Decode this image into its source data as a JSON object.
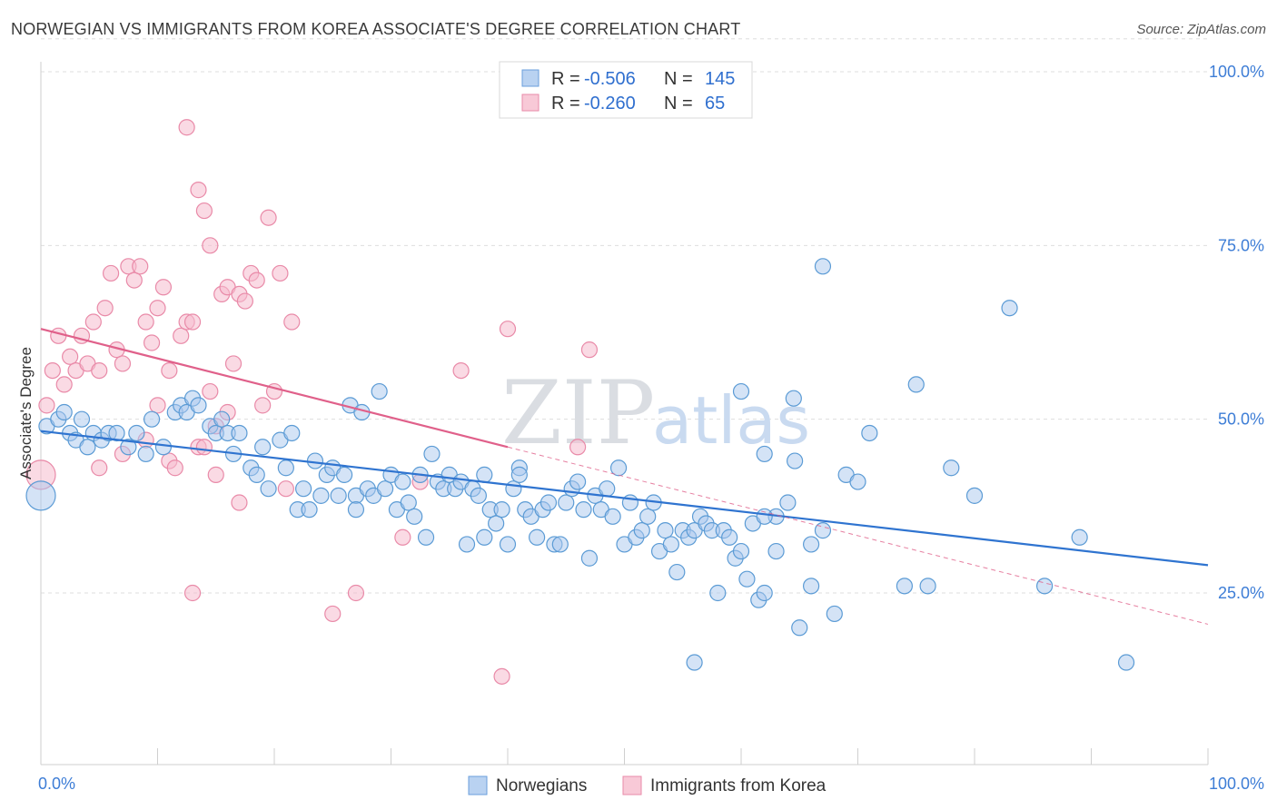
{
  "title": "NORWEGIAN VS IMMIGRANTS FROM KOREA ASSOCIATE'S DEGREE CORRELATION CHART",
  "source": "Source: ZipAtlas.com",
  "watermark": {
    "zip": "ZIP",
    "atlas": "atlas"
  },
  "colors": {
    "blue": "#5b9bd5",
    "blue_fill": "#a9c8ee",
    "blue_line": "#2f74d0",
    "pink": "#e98aa8",
    "pink_fill": "#f5bccd",
    "pink_line": "#e0608a"
  },
  "legend": {
    "rows": [
      {
        "r_label": "R = ",
        "r_value": "-0.506",
        "n_label": "N = ",
        "n_value": "145"
      },
      {
        "r_label": "R = ",
        "r_value": "-0.260",
        "n_label": "N = ",
        "n_value": "65"
      }
    ]
  },
  "bottom_legend": [
    "Norwegians",
    "Immigrants from Korea"
  ],
  "chart_data": {
    "type": "scatter",
    "ylabel": "Associate's Degree",
    "xlim": [
      0,
      100
    ],
    "ylim": [
      0,
      105
    ],
    "x_tick_labels": [
      "0.0%",
      "100.0%"
    ],
    "y_ticks": [
      25,
      50,
      75,
      100
    ],
    "y_tick_labels": [
      "25.0%",
      "50.0%",
      "75.0%",
      "100.0%"
    ],
    "series": [
      {
        "name": "Norwegians",
        "trend": {
          "x": [
            0,
            100
          ],
          "y": [
            48.3,
            29.0
          ]
        },
        "points": [
          [
            0.5,
            49
          ],
          [
            1.5,
            50
          ],
          [
            2,
            51
          ],
          [
            2.5,
            48
          ],
          [
            3,
            47
          ],
          [
            3.5,
            50
          ],
          [
            4,
            46
          ],
          [
            4.5,
            48
          ],
          [
            5.2,
            47
          ],
          [
            5.8,
            48
          ],
          [
            6.5,
            48
          ],
          [
            7.5,
            46
          ],
          [
            8.2,
            48
          ],
          [
            9,
            45
          ],
          [
            9.5,
            50
          ],
          [
            10.5,
            46
          ],
          [
            11.5,
            51
          ],
          [
            12,
            52
          ],
          [
            12.5,
            51
          ],
          [
            13,
            53
          ],
          [
            13.5,
            52
          ],
          [
            14.5,
            49
          ],
          [
            15,
            48
          ],
          [
            15.5,
            50
          ],
          [
            16,
            48
          ],
          [
            16.5,
            45
          ],
          [
            17,
            48
          ],
          [
            18,
            43
          ],
          [
            18.5,
            42
          ],
          [
            19,
            46
          ],
          [
            19.5,
            40
          ],
          [
            20.5,
            47
          ],
          [
            21,
            43
          ],
          [
            21.5,
            48
          ],
          [
            22,
            37
          ],
          [
            22.5,
            40
          ],
          [
            23,
            37
          ],
          [
            23.5,
            44
          ],
          [
            24,
            39
          ],
          [
            24.5,
            42
          ],
          [
            25,
            43
          ],
          [
            25.5,
            39
          ],
          [
            26,
            42
          ],
          [
            26.5,
            52
          ],
          [
            27,
            39
          ],
          [
            27.5,
            51
          ],
          [
            28,
            40
          ],
          [
            28.5,
            39
          ],
          [
            29,
            54
          ],
          [
            29.5,
            40
          ],
          [
            30,
            42
          ],
          [
            30.5,
            37
          ],
          [
            31,
            41
          ],
          [
            31.5,
            38
          ],
          [
            32,
            36
          ],
          [
            32.5,
            42
          ],
          [
            33,
            33
          ],
          [
            33.5,
            45
          ],
          [
            34,
            41
          ],
          [
            34.5,
            40
          ],
          [
            35,
            42
          ],
          [
            35.5,
            40
          ],
          [
            36,
            41
          ],
          [
            36.5,
            32
          ],
          [
            37,
            40
          ],
          [
            37.5,
            39
          ],
          [
            38,
            42
          ],
          [
            38.5,
            37
          ],
          [
            39,
            35
          ],
          [
            39.5,
            37
          ],
          [
            40,
            32
          ],
          [
            40.5,
            40
          ],
          [
            41,
            43
          ],
          [
            41.5,
            37
          ],
          [
            42,
            36
          ],
          [
            42.5,
            33
          ],
          [
            43,
            37
          ],
          [
            43.5,
            38
          ],
          [
            44,
            32
          ],
          [
            44.5,
            32
          ],
          [
            45,
            38
          ],
          [
            45.5,
            40
          ],
          [
            46,
            41
          ],
          [
            46.5,
            37
          ],
          [
            47,
            30
          ],
          [
            47.5,
            39
          ],
          [
            48,
            37
          ],
          [
            48.5,
            40
          ],
          [
            49,
            36
          ],
          [
            49.5,
            43
          ],
          [
            50,
            32
          ],
          [
            50.5,
            38
          ],
          [
            51,
            33
          ],
          [
            51.5,
            34
          ],
          [
            52,
            36
          ],
          [
            52.5,
            38
          ],
          [
            53,
            31
          ],
          [
            53.5,
            34
          ],
          [
            54,
            32
          ],
          [
            54.5,
            28
          ],
          [
            55,
            34
          ],
          [
            55.5,
            33
          ],
          [
            56,
            34
          ],
          [
            56.5,
            36
          ],
          [
            57,
            35
          ],
          [
            57.5,
            34
          ],
          [
            58,
            25
          ],
          [
            58.5,
            34
          ],
          [
            59,
            33
          ],
          [
            59.5,
            30
          ],
          [
            60,
            31
          ],
          [
            60.5,
            27
          ],
          [
            61,
            35
          ],
          [
            61.5,
            24
          ],
          [
            62,
            25
          ],
          [
            63,
            36
          ],
          [
            64,
            38
          ],
          [
            65,
            20
          ],
          [
            66,
            26
          ],
          [
            67,
            34
          ],
          [
            68,
            22
          ],
          [
            69,
            42
          ],
          [
            70,
            41
          ],
          [
            71,
            48
          ],
          [
            74,
            26
          ],
          [
            75,
            55
          ],
          [
            76,
            26
          ],
          [
            78,
            43
          ],
          [
            80,
            39
          ],
          [
            83,
            66
          ],
          [
            86,
            26
          ],
          [
            89,
            33
          ],
          [
            93,
            15
          ],
          [
            63,
            31
          ],
          [
            56,
            15
          ],
          [
            41,
            42
          ],
          [
            38,
            33
          ],
          [
            27,
            37
          ],
          [
            66,
            32
          ],
          [
            67,
            72
          ],
          [
            64.5,
            53
          ],
          [
            62,
            45
          ],
          [
            64.6,
            44
          ],
          [
            60,
            54
          ],
          [
            62,
            36
          ]
        ]
      },
      {
        "name": "Immigrants from Korea",
        "trend": {
          "x": [
            0,
            40
          ],
          "y": [
            63.0,
            46.0
          ]
        },
        "trend_ext": {
          "x": [
            40,
            100
          ],
          "y": [
            46.0,
            20.5
          ]
        },
        "points": [
          [
            0.5,
            52
          ],
          [
            1,
            57
          ],
          [
            1.5,
            62
          ],
          [
            2,
            55
          ],
          [
            2.5,
            59
          ],
          [
            3,
            57
          ],
          [
            3.5,
            62
          ],
          [
            4,
            58
          ],
          [
            4.5,
            64
          ],
          [
            5,
            57
          ],
          [
            5.5,
            66
          ],
          [
            6,
            71
          ],
          [
            6.5,
            60
          ],
          [
            7,
            58
          ],
          [
            7.5,
            72
          ],
          [
            8,
            70
          ],
          [
            8.5,
            72
          ],
          [
            9,
            64
          ],
          [
            9.5,
            61
          ],
          [
            10,
            52
          ],
          [
            10.5,
            69
          ],
          [
            11,
            44
          ],
          [
            11.5,
            43
          ],
          [
            12,
            62
          ],
          [
            12.5,
            64
          ],
          [
            13,
            64
          ],
          [
            13.5,
            46
          ],
          [
            14,
            46
          ],
          [
            14.5,
            54
          ],
          [
            15,
            49
          ],
          [
            12.5,
            92
          ],
          [
            13.5,
            83
          ],
          [
            14,
            80
          ],
          [
            14.5,
            75
          ],
          [
            15.5,
            68
          ],
          [
            16,
            69
          ],
          [
            16.5,
            58
          ],
          [
            17,
            68
          ],
          [
            17.5,
            67
          ],
          [
            18,
            71
          ],
          [
            18.5,
            70
          ],
          [
            19,
            52
          ],
          [
            19.5,
            79
          ],
          [
            20,
            54
          ],
          [
            20.5,
            71
          ],
          [
            21,
            40
          ],
          [
            21.5,
            64
          ],
          [
            15,
            42
          ],
          [
            17,
            38
          ],
          [
            16,
            51
          ],
          [
            13,
            25
          ],
          [
            25,
            22
          ],
          [
            27,
            25
          ],
          [
            31,
            33
          ],
          [
            32.5,
            41
          ],
          [
            36,
            57
          ],
          [
            39.5,
            13
          ],
          [
            46,
            46
          ],
          [
            47,
            60
          ],
          [
            40,
            63
          ],
          [
            5,
            43
          ],
          [
            7,
            45
          ],
          [
            9,
            47
          ],
          [
            10,
            66
          ],
          [
            11,
            57
          ]
        ]
      }
    ]
  }
}
